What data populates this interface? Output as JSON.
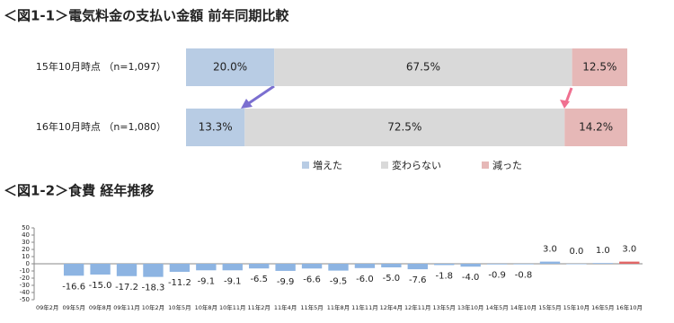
{
  "chart_data": [
    {
      "type": "stacked-bar-horizontal",
      "title": "＜図1-1＞電気料金の支払い金額 前年同期比較",
      "categories": [
        "15年10月時点 （n=1,097）",
        "16年10月時点 （n=1,080）"
      ],
      "series": [
        {
          "name": "増えた",
          "color": "#b8cce4",
          "values": [
            20.0,
            13.3
          ],
          "value_labels": [
            "20.0%",
            "13.3%"
          ]
        },
        {
          "name": "変わらない",
          "color": "#d9d9d9",
          "values": [
            67.5,
            72.5
          ],
          "value_labels": [
            "67.5%",
            "72.5%"
          ]
        },
        {
          "name": "減った",
          "color": "#e6b8b7",
          "values": [
            12.5,
            14.2
          ],
          "value_labels": [
            "12.5%",
            "14.2%"
          ]
        }
      ],
      "legend": "bottom"
    },
    {
      "type": "bar",
      "title": "＜図1-2＞食費 経年推移",
      "categories": [
        "09年2月",
        "09年5月",
        "09年8月",
        "09年11月",
        "10年2月",
        "10年5月",
        "10年8月",
        "10年11月",
        "11年2月",
        "11年4月",
        "11年5月",
        "11年8月",
        "11年11月",
        "12年4月",
        "12年11月",
        "13年5月",
        "13年10月",
        "14年5月",
        "14年10月",
        "15年5月",
        "15年10月",
        "16年5月",
        "16年10月"
      ],
      "values": [
        null,
        -16.6,
        -15.0,
        -17.2,
        -18.3,
        -11.2,
        -9.1,
        -9.1,
        -6.5,
        -9.9,
        -6.6,
        -9.5,
        -6.0,
        -5.0,
        -7.6,
        -1.8,
        -4.0,
        -0.9,
        -0.8,
        3.0,
        0.0,
        1.0,
        3.0
      ],
      "value_labels": [
        null,
        "-16.6",
        "-15.0",
        "-17.2",
        "-18.3",
        "-11.2",
        "-9.1",
        "-9.1",
        "-6.5",
        "-9.9",
        "-6.6",
        "-9.5",
        "-6.0",
        "-5.0",
        "-7.6",
        "-1.8",
        "-4.0",
        "-0.9",
        "-0.8",
        "3.0",
        "0.0",
        "1.0",
        "3.0"
      ],
      "colors": [
        "#8db4e2",
        "#8db4e2",
        "#8db4e2",
        "#8db4e2",
        "#8db4e2",
        "#8db4e2",
        "#8db4e2",
        "#8db4e2",
        "#8db4e2",
        "#8db4e2",
        "#8db4e2",
        "#8db4e2",
        "#8db4e2",
        "#8db4e2",
        "#8db4e2",
        "#8db4e2",
        "#8db4e2",
        "#8db4e2",
        "#8db4e2",
        "#8db4e2",
        "#8db4e2",
        "#8db4e2",
        "#e06666"
      ],
      "ylim": [
        -50,
        50
      ],
      "yticks": [
        -50,
        -40,
        -30,
        -20,
        -10,
        0,
        10,
        20,
        30,
        40,
        50
      ]
    }
  ]
}
